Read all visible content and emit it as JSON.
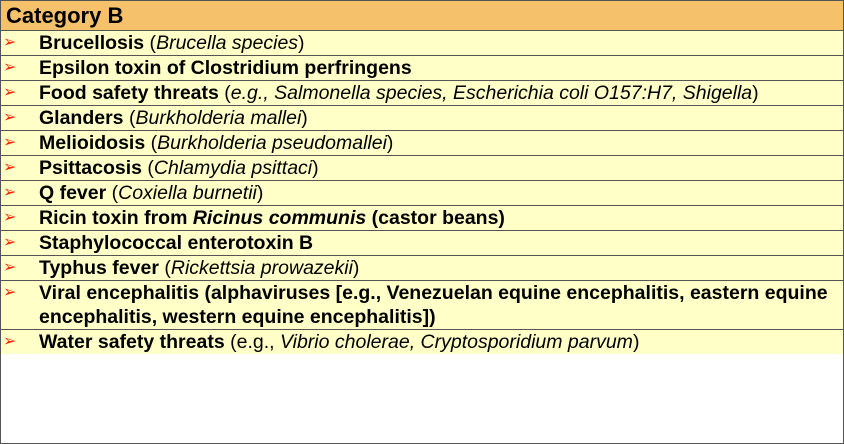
{
  "header": {
    "title": "Category B"
  },
  "arrow_color": "#ff2a00",
  "items": [
    {
      "name": "Brucellosis",
      "open": " (",
      "detail": "Brucella species",
      "close": ")"
    },
    {
      "name": "Epsilon toxin of Clostridium perfringens"
    },
    {
      "name": "Food safety threats",
      "open": " (",
      "detail": "e.g., Salmonella species, Escherichia coli O157:H7, Shigella",
      "close": ")"
    },
    {
      "name": "Glanders",
      "open": " (",
      "detail": "Burkholderia mallei",
      "close": ")"
    },
    {
      "name": "Melioidosis",
      "open": " (",
      "detail": "Burkholderia pseudomallei",
      "close": ")"
    },
    {
      "name": "Psittacosis",
      "open": " (",
      "detail": "Chlamydia psittaci",
      "close": ")"
    },
    {
      "name": "Q fever",
      "open": " (",
      "detail": "Coxiella burnetii",
      "close": ")"
    },
    {
      "name_a": "Ricin toxin from ",
      "name_b": "Ricinus communis",
      "name_c": " (castor beans)"
    },
    {
      "name": "Staphylococcal enterotoxin B"
    },
    {
      "name": "Typhus fever",
      "open": " (",
      "detail": "Rickettsia prowazekii",
      "close": ")"
    },
    {
      "name": "Viral encephalitis (alphaviruses [e.g., Venezuelan equine encephalitis, eastern equine encephalitis, western equine encephalitis])"
    },
    {
      "name": "Water safety threats",
      "open": " (e.g., ",
      "detail": "Vibrio cholerae, Cryptosporidium parvum",
      "close": ")"
    }
  ]
}
